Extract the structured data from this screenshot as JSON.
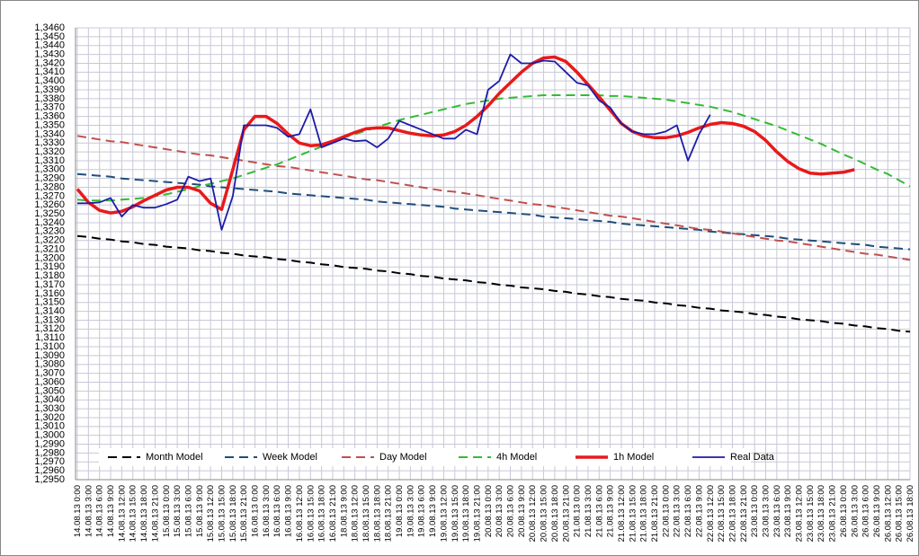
{
  "chart_data": {
    "type": "line",
    "categories": [
      "14.08.13 0:00",
      "14.08.13 3:00",
      "14.08.13 6:00",
      "14.08.13 9:00",
      "14.08.13 12:00",
      "14.08.13 15:00",
      "14.08.13 18:00",
      "14.08.13 21:00",
      "15.08.13 0:00",
      "15.08.13 3:00",
      "15.08.13 6:00",
      "15.08.13 9:00",
      "15.08.13 12:00",
      "15.08.13 15:00",
      "15.08.13 18:00",
      "15.08.13 21:00",
      "16.08.13 0:00",
      "16.08.13 3:00",
      "16.08.13 6:00",
      "16.08.13 9:00",
      "16.08.13 12:00",
      "16.08.13 15:00",
      "16.08.13 18:00",
      "16.08.13 21:00",
      "18.08.13 9:00",
      "18.08.13 12:00",
      "18.08.13 15:00",
      "18.08.13 18:00",
      "18.08.13 21:00",
      "19.08.13 0:00",
      "19.08.13 3:00",
      "19.08.13 6:00",
      "19.08.13 9:00",
      "19.08.13 12:00",
      "19.08.13 15:00",
      "19.08.13 18:00",
      "19.08.13 21:00",
      "20.08.13 0:00",
      "20.08.13 3:00",
      "20.08.13 6:00",
      "20.08.13 9:00",
      "20.08.13 12:00",
      "20.08.13 15:00",
      "20.08.13 18:00",
      "20.08.13 21:00",
      "21.08.13 0:00",
      "21.08.13 3:00",
      "21.08.13 6:00",
      "21.08.13 9:00",
      "21.08.13 12:00",
      "21.08.13 15:00",
      "21.08.13 18:00",
      "21.08.13 21:00",
      "22.08.13 0:00",
      "22.08.13 3:00",
      "22.08.13 6:00",
      "22.08.13 9:00",
      "22.08.13 12:00",
      "22.08.13 15:00",
      "22.08.13 18:00",
      "22.08.13 21:00",
      "23.08.13 0:00",
      "23.08.13 3:00",
      "23.08.13 6:00",
      "23.08.13 9:00",
      "23.08.13 12:00",
      "23.08.13 15:00",
      "23.08.13 18:00",
      "23.08.13 21:00",
      "26.08.13 0:00",
      "26.08.13 3:00",
      "26.08.13 6:00",
      "26.08.13 9:00",
      "26.08.13 12:00",
      "26.08.13 15:00",
      "26.08.13 18:00"
    ],
    "series": [
      {
        "name": "Month Model",
        "color": "#000000",
        "style": "dashed",
        "values": [
          1.3225,
          1.3224,
          1.3222,
          1.3221,
          1.3219,
          1.3218,
          1.3216,
          1.3215,
          1.3213,
          1.3212,
          1.3211,
          1.3209,
          1.3208,
          1.3206,
          1.3205,
          1.3203,
          1.3202,
          1.3201,
          1.3199,
          1.3198,
          1.3196,
          1.3195,
          1.3193,
          1.3192,
          1.319,
          1.3189,
          1.3188,
          1.3186,
          1.3185,
          1.3183,
          1.3182,
          1.318,
          1.3179,
          1.3177,
          1.3176,
          1.3175,
          1.3173,
          1.3172,
          1.317,
          1.3169,
          1.3167,
          1.3166,
          1.3165,
          1.3163,
          1.3162,
          1.316,
          1.3159,
          1.3157,
          1.3156,
          1.3154,
          1.3153,
          1.3152,
          1.315,
          1.3149,
          1.3147,
          1.3146,
          1.3144,
          1.3143,
          1.3141,
          1.314,
          1.3139,
          1.3137,
          1.3136,
          1.3134,
          1.3133,
          1.3131,
          1.313,
          1.3129,
          1.3127,
          1.3126,
          1.3124,
          1.3123,
          1.3121,
          1.312,
          1.3118,
          1.3117
        ]
      },
      {
        "name": "Week Model",
        "color": "#1f4e79",
        "style": "dashed",
        "values": [
          1.3295,
          1.3294,
          1.3293,
          1.3292,
          1.329,
          1.3289,
          1.3288,
          1.3287,
          1.3286,
          1.3285,
          1.3284,
          1.3283,
          1.3281,
          1.328,
          1.3279,
          1.3278,
          1.3277,
          1.3276,
          1.3275,
          1.3273,
          1.3272,
          1.3271,
          1.327,
          1.3269,
          1.3268,
          1.3267,
          1.3266,
          1.3264,
          1.3263,
          1.3262,
          1.3261,
          1.326,
          1.3259,
          1.3258,
          1.3256,
          1.3255,
          1.3254,
          1.3253,
          1.3252,
          1.3251,
          1.325,
          1.3249,
          1.3247,
          1.3246,
          1.3245,
          1.3244,
          1.3243,
          1.3242,
          1.3241,
          1.3239,
          1.3238,
          1.3237,
          1.3236,
          1.3235,
          1.3234,
          1.3233,
          1.3232,
          1.323,
          1.3229,
          1.3228,
          1.3227,
          1.3226,
          1.3225,
          1.3224,
          1.3222,
          1.3221,
          1.322,
          1.3219,
          1.3218,
          1.3217,
          1.3216,
          1.3215,
          1.3213,
          1.3212,
          1.3211,
          1.321
        ]
      },
      {
        "name": "Day Model",
        "color": "#c0504d",
        "style": "dashed",
        "values": [
          1.3338,
          1.3336,
          1.3334,
          1.3332,
          1.3331,
          1.3329,
          1.3327,
          1.3325,
          1.3323,
          1.3321,
          1.3319,
          1.3317,
          1.3316,
          1.3314,
          1.3312,
          1.331,
          1.3308,
          1.3306,
          1.3304,
          1.3303,
          1.3301,
          1.3299,
          1.3297,
          1.3295,
          1.3293,
          1.3291,
          1.3289,
          1.3288,
          1.3286,
          1.3284,
          1.3282,
          1.328,
          1.3278,
          1.3276,
          1.3275,
          1.3273,
          1.3271,
          1.3269,
          1.3267,
          1.3265,
          1.3263,
          1.3261,
          1.326,
          1.3258,
          1.3256,
          1.3254,
          1.3252,
          1.325,
          1.3248,
          1.3247,
          1.3245,
          1.3243,
          1.3241,
          1.3239,
          1.3237,
          1.3235,
          1.3233,
          1.3232,
          1.323,
          1.3228,
          1.3226,
          1.3224,
          1.3222,
          1.322,
          1.3219,
          1.3217,
          1.3215,
          1.3213,
          1.3211,
          1.3209,
          1.3207,
          1.3205,
          1.3204,
          1.3202,
          1.32,
          1.3198
        ]
      },
      {
        "name": "4h Model",
        "color": "#33bb33",
        "style": "dashed",
        "values": [
          1.3266,
          1.3265,
          1.3265,
          1.3265,
          1.3266,
          1.3267,
          1.3268,
          1.327,
          1.3272,
          1.3275,
          1.3278,
          1.3281,
          1.3284,
          1.3287,
          1.329,
          1.3294,
          1.3298,
          1.3302,
          1.3306,
          1.3311,
          1.3316,
          1.3321,
          1.3326,
          1.3331,
          1.3336,
          1.334,
          1.3344,
          1.3348,
          1.3352,
          1.3356,
          1.3359,
          1.3362,
          1.3365,
          1.3368,
          1.3371,
          1.3374,
          1.3376,
          1.3378,
          1.338,
          1.3381,
          1.3382,
          1.3383,
          1.3384,
          1.3384,
          1.3384,
          1.3384,
          1.3384,
          1.3384,
          1.3383,
          1.3383,
          1.3382,
          1.3381,
          1.338,
          1.3379,
          1.3377,
          1.3375,
          1.3373,
          1.3371,
          1.3368,
          1.3365,
          1.3361,
          1.3357,
          1.3353,
          1.3349,
          1.3344,
          1.3339,
          1.3334,
          1.3329,
          1.3323,
          1.3317,
          1.3312,
          1.3306,
          1.33,
          1.3295,
          1.3288,
          1.3281
        ]
      },
      {
        "name": "1h Model",
        "color": "#e8191a",
        "style": "solid",
        "values": [
          1.3278,
          1.3263,
          1.3254,
          1.3251,
          1.3253,
          1.3258,
          1.3265,
          1.3271,
          1.3277,
          1.328,
          1.328,
          1.3276,
          1.3262,
          1.3255,
          1.33,
          1.3345,
          1.336,
          1.336,
          1.3352,
          1.334,
          1.333,
          1.3327,
          1.3328,
          1.3332,
          1.3337,
          1.3342,
          1.3346,
          1.3347,
          1.3347,
          1.3344,
          1.3341,
          1.3339,
          1.3338,
          1.3339,
          1.3343,
          1.335,
          1.336,
          1.3372,
          1.3386,
          1.3398,
          1.341,
          1.342,
          1.3426,
          1.3427,
          1.3422,
          1.341,
          1.3396,
          1.3382,
          1.3367,
          1.3352,
          1.3343,
          1.3338,
          1.3336,
          1.3336,
          1.3338,
          1.3342,
          1.3347,
          1.3351,
          1.3353,
          1.3352,
          1.3349,
          1.3343,
          1.3333,
          1.332,
          1.3309,
          1.3301,
          1.3296,
          1.3295,
          1.3296,
          1.3297,
          1.33,
          null,
          null,
          null,
          null,
          null
        ]
      },
      {
        "name": "Real Data",
        "color": "#1c1ca8",
        "style": "solid",
        "values": [
          1.3262,
          1.3262,
          1.3263,
          1.3268,
          1.3247,
          1.326,
          1.3257,
          1.3257,
          1.3261,
          1.3266,
          1.3292,
          1.3287,
          1.329,
          1.3232,
          1.327,
          1.335,
          1.335,
          1.335,
          1.3347,
          1.3337,
          1.334,
          1.3368,
          1.3325,
          1.333,
          1.3335,
          1.3332,
          1.3333,
          1.3325,
          1.3335,
          1.3355,
          1.335,
          1.3345,
          1.334,
          1.3335,
          1.3335,
          1.3345,
          1.334,
          1.339,
          1.34,
          1.343,
          1.342,
          1.342,
          1.3423,
          1.3422,
          1.341,
          1.3398,
          1.3395,
          1.3378,
          1.337,
          1.3352,
          1.3343,
          1.334,
          1.334,
          1.3343,
          1.335,
          1.331,
          1.334,
          1.3362,
          null,
          null,
          null,
          null,
          null,
          null,
          null,
          null,
          null,
          null,
          null,
          null,
          null,
          null,
          null,
          null,
          null,
          null
        ]
      }
    ],
    "ylim": [
      1.295,
      1.346
    ],
    "yticks": [
      {
        "value": 1.295,
        "label": "1,2950"
      },
      {
        "value": 1.296,
        "label": "1,2960"
      },
      {
        "value": 1.297,
        "label": "1,2970"
      },
      {
        "value": 1.298,
        "label": "1,2980"
      },
      {
        "value": 1.299,
        "label": "1,2990"
      },
      {
        "value": 1.3,
        "label": "1,3000"
      },
      {
        "value": 1.301,
        "label": "1,3010"
      },
      {
        "value": 1.302,
        "label": "1,3020"
      },
      {
        "value": 1.303,
        "label": "1,3030"
      },
      {
        "value": 1.304,
        "label": "1,3040"
      },
      {
        "value": 1.305,
        "label": "1,3050"
      },
      {
        "value": 1.306,
        "label": "1,3060"
      },
      {
        "value": 1.307,
        "label": "1,3070"
      },
      {
        "value": 1.308,
        "label": "1,3080"
      },
      {
        "value": 1.309,
        "label": "1,3090"
      },
      {
        "value": 1.31,
        "label": "1,3100"
      },
      {
        "value": 1.311,
        "label": "1,3110"
      },
      {
        "value": 1.312,
        "label": "1,3120"
      },
      {
        "value": 1.313,
        "label": "1,3130"
      },
      {
        "value": 1.314,
        "label": "1,3140"
      },
      {
        "value": 1.315,
        "label": "1,3150"
      },
      {
        "value": 1.316,
        "label": "1,3160"
      },
      {
        "value": 1.317,
        "label": "1,3170"
      },
      {
        "value": 1.318,
        "label": "1,3180"
      },
      {
        "value": 1.319,
        "label": "1,3190"
      },
      {
        "value": 1.32,
        "label": "1,3200"
      },
      {
        "value": 1.321,
        "label": "1,3210"
      },
      {
        "value": 1.322,
        "label": "1,3220"
      },
      {
        "value": 1.323,
        "label": "1,3230"
      },
      {
        "value": 1.324,
        "label": "1,3240"
      },
      {
        "value": 1.325,
        "label": "1,3250"
      },
      {
        "value": 1.326,
        "label": "1,3260"
      },
      {
        "value": 1.327,
        "label": "1,3270"
      },
      {
        "value": 1.328,
        "label": "1,3280"
      },
      {
        "value": 1.329,
        "label": "1,3290"
      },
      {
        "value": 1.33,
        "label": "1,3300"
      },
      {
        "value": 1.331,
        "label": "1,3310"
      },
      {
        "value": 1.332,
        "label": "1,3320"
      },
      {
        "value": 1.333,
        "label": "1,3330"
      },
      {
        "value": 1.334,
        "label": "1,3340"
      },
      {
        "value": 1.335,
        "label": "1,3350"
      },
      {
        "value": 1.336,
        "label": "1,3360"
      },
      {
        "value": 1.337,
        "label": "1,3370"
      },
      {
        "value": 1.338,
        "label": "1,3380"
      },
      {
        "value": 1.339,
        "label": "1,3390"
      },
      {
        "value": 1.34,
        "label": "1,3400"
      },
      {
        "value": 1.341,
        "label": "1,3410"
      },
      {
        "value": 1.342,
        "label": "1,3420"
      },
      {
        "value": 1.343,
        "label": "1,3430"
      },
      {
        "value": 1.344,
        "label": "1,3440"
      },
      {
        "value": 1.345,
        "label": "1,3450"
      },
      {
        "value": 1.346,
        "label": "1,3460"
      }
    ],
    "grid": true,
    "legend": "bottom"
  }
}
